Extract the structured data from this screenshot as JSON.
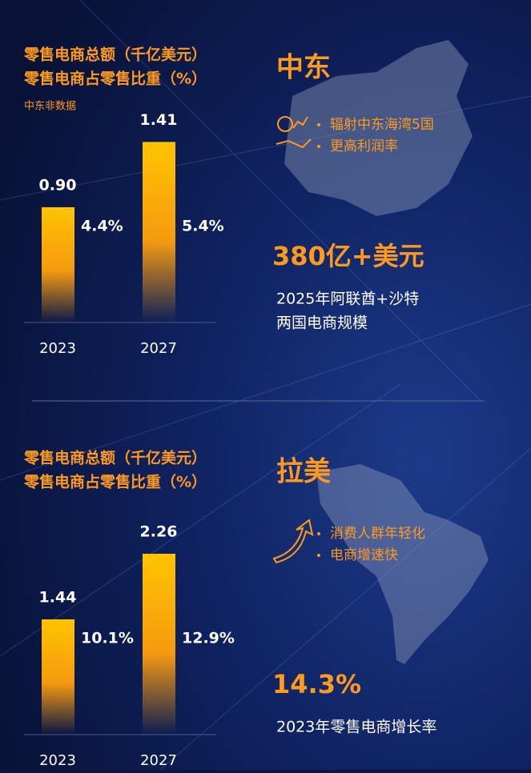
{
  "chart_data": [
    {
      "type": "bar",
      "subtitle": "中东非数据",
      "categories": [
        "2023",
        "2027"
      ],
      "series": [
        {
          "name": "零售电商总额（千亿美元）",
          "color": "#ffc000",
          "values": [
            0.9,
            1.41
          ],
          "value_labels": [
            "0.90",
            "1.41"
          ]
        },
        {
          "name": "零售电商占零售比重（%）",
          "values": [
            4.4,
            5.4
          ],
          "value_labels": [
            "4.4%",
            "5.4%"
          ]
        }
      ],
      "ylim": [
        0,
        1.5
      ]
    },
    {
      "type": "bar",
      "categories": [
        "2023",
        "2027"
      ],
      "series": [
        {
          "name": "零售电商总额（千亿美元）",
          "color": "#ffc000",
          "values": [
            1.44,
            2.26
          ],
          "value_labels": [
            "1.44",
            "2.26"
          ]
        },
        {
          "name": "零售电商占零售比重（%）",
          "values": [
            10.1,
            12.9
          ],
          "value_labels": [
            "10.1%",
            "12.9%"
          ]
        }
      ],
      "ylim": [
        0,
        2.4
      ]
    }
  ],
  "panels": [
    {
      "region": "中东",
      "bullets": [
        "辐射中东海湾5国",
        "更高利润率"
      ],
      "highlight": "380亿+美元",
      "description": [
        "2025年阿联酋+沙特",
        "两国电商规模"
      ]
    },
    {
      "region": "拉美",
      "bullets": [
        "消费人群年轻化",
        "电商增速快"
      ],
      "highlight": "14.3%",
      "description": [
        "2023年零售电商增长率"
      ]
    }
  ]
}
